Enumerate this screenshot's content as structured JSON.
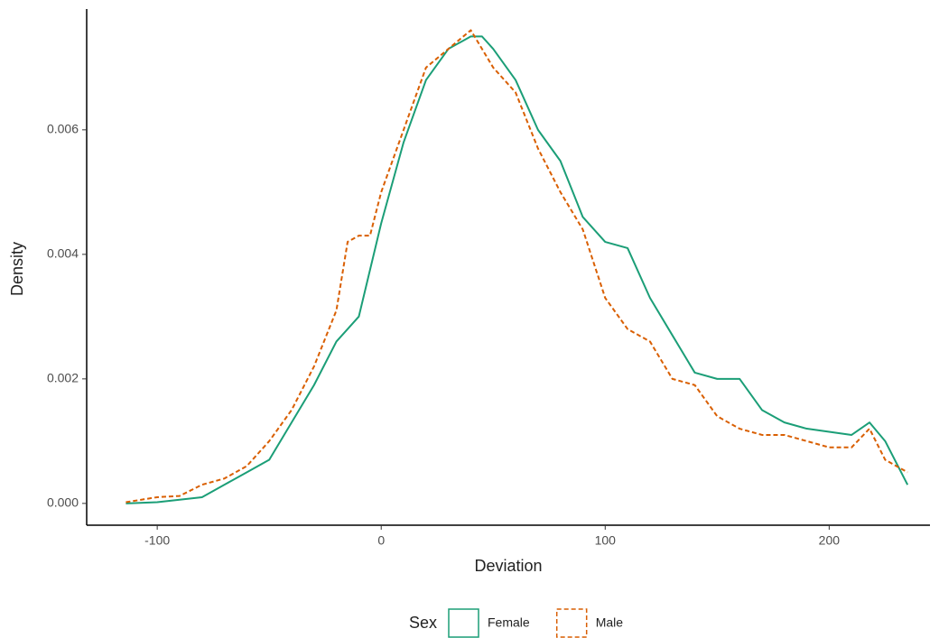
{
  "chart_data": {
    "type": "line",
    "x_label": "Deviation",
    "y_label": "Density",
    "legend_title": "Sex",
    "legend_position": "bottom",
    "xlim": [
      -131.5,
      245
    ],
    "ylim": [
      -0.00035,
      0.00794
    ],
    "xticks": [
      -100,
      0,
      100,
      200
    ],
    "yticks": [
      {
        "value": 0,
        "label": "0.000"
      },
      {
        "value": 0.002,
        "label": "0.002"
      },
      {
        "value": 0.004,
        "label": "0.004"
      },
      {
        "value": 0.006,
        "label": "0.006"
      }
    ],
    "grid": false,
    "series": [
      {
        "name": "Female",
        "color": "#1b9e77",
        "line_style": "solid",
        "x": [
          -114,
          -100,
          -80,
          -70,
          -60,
          -50,
          -40,
          -30,
          -20,
          -10,
          0,
          10,
          20,
          30,
          40,
          45,
          50,
          60,
          70,
          80,
          90,
          100,
          110,
          120,
          130,
          140,
          150,
          160,
          170,
          180,
          190,
          200,
          210,
          218,
          225,
          235
        ],
        "values": [
          0.0,
          2e-05,
          0.0001,
          0.0003,
          0.0005,
          0.0007,
          0.0013,
          0.0019,
          0.0026,
          0.003,
          0.0045,
          0.0058,
          0.0068,
          0.0073,
          0.0075,
          0.0075,
          0.0073,
          0.0068,
          0.006,
          0.0055,
          0.0046,
          0.0042,
          0.0041,
          0.0033,
          0.0027,
          0.0021,
          0.002,
          0.002,
          0.0015,
          0.0013,
          0.0012,
          0.00115,
          0.0011,
          0.0013,
          0.001,
          0.0003
        ]
      },
      {
        "name": "Male",
        "color": "#d95f02",
        "line_style": "dashed",
        "x": [
          -114,
          -100,
          -90,
          -80,
          -70,
          -60,
          -50,
          -40,
          -30,
          -20,
          -15,
          -10,
          -5,
          0,
          10,
          20,
          30,
          40,
          50,
          60,
          70,
          80,
          90,
          100,
          110,
          120,
          130,
          140,
          150,
          160,
          170,
          180,
          190,
          200,
          210,
          218,
          225,
          235
        ],
        "values": [
          2e-05,
          0.0001,
          0.00012,
          0.0003,
          0.0004,
          0.0006,
          0.001,
          0.0015,
          0.0022,
          0.0031,
          0.0042,
          0.0043,
          0.0043,
          0.005,
          0.006,
          0.007,
          0.0073,
          0.0076,
          0.007,
          0.0066,
          0.0057,
          0.005,
          0.0044,
          0.0033,
          0.0028,
          0.0026,
          0.002,
          0.0019,
          0.0014,
          0.0012,
          0.0011,
          0.0011,
          0.001,
          0.0009,
          0.0009,
          0.0012,
          0.0007,
          0.0005
        ]
      }
    ]
  }
}
